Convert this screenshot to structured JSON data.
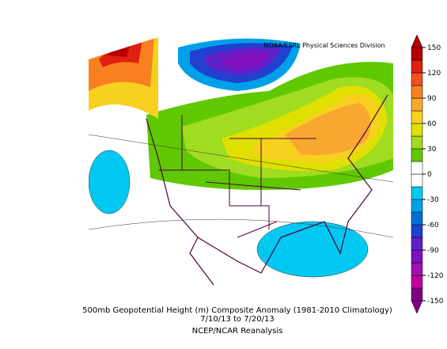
{
  "header": {
    "credit": "NOAA/ESRL Physical Sciences Division"
  },
  "caption": {
    "line1": "500mb Geopotential Height (m) Composite Anomaly (1981-2010 Climatology)",
    "line2": "7/10/13  to 7/20/13",
    "line3": "NCEP/NCAR Reanalysis"
  },
  "colorbar": {
    "range": [
      -150,
      150
    ],
    "ticks": [
      150,
      120,
      90,
      60,
      30,
      0,
      -30,
      -60,
      -90,
      -120,
      -150
    ],
    "colors": [
      "#800080",
      "#c000a0",
      "#a010b0",
      "#8010c0",
      "#6020c8",
      "#2040d0",
      "#0070d8",
      "#00a0e8",
      "#00c8f0",
      "#ffffff",
      "#ffffff",
      "#60c800",
      "#a0dc20",
      "#e0e000",
      "#f8d020",
      "#f8a830",
      "#f88020",
      "#f05020",
      "#e02010",
      "#b40000"
    ]
  }
}
